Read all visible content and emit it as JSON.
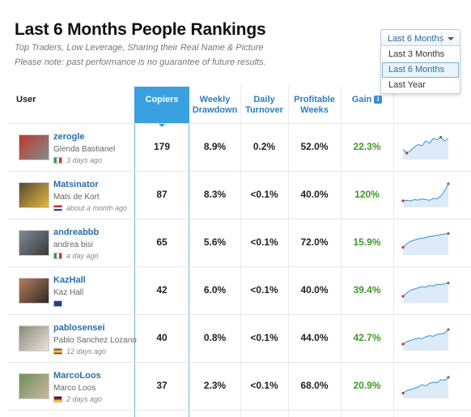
{
  "header": {
    "title": "Last 6 Months People Rankings",
    "subtitle": "Top Traders, Low Leverage, Sharing their Real Name & Picture",
    "note": "Please note: past performance is no guarantee of future results."
  },
  "period_dropdown": {
    "selected": "Last 6 Months",
    "options": [
      "Last 3 Months",
      "Last 6 Months",
      "Last Year"
    ]
  },
  "table": {
    "columns": {
      "user": "User",
      "copiers": "Copiers",
      "weekly_drawdown": [
        "Weekly",
        "Drawdown"
      ],
      "daily_turnover": [
        "Daily",
        "Turnover"
      ],
      "profitable_weeks": [
        "Profitable",
        "Weeks"
      ],
      "gain": "Gain"
    },
    "rows": [
      {
        "username": "zerogle",
        "real_name": "Glenda Bastianel",
        "flag": "italy-flag",
        "last_seen": "3 days ago",
        "copiers": "179",
        "weekly_drawdown": "8.9%",
        "daily_turnover": "0.2%",
        "profitable_weeks": "52.0%",
        "gain": "22.3%",
        "spark": [
          0.35,
          0.2,
          0.3,
          0.45,
          0.55,
          0.5,
          0.7,
          0.6,
          0.8,
          0.75,
          0.85,
          0.7,
          0.8
        ]
      },
      {
        "username": "Matsinator",
        "real_name": "Mats de Kort",
        "flag": "netherlands-flag",
        "last_seen": "about a month ago",
        "copiers": "87",
        "weekly_drawdown": "8.3%",
        "daily_turnover": "<0.1%",
        "profitable_weeks": "40.0%",
        "gain": "120%",
        "spark": [
          0.2,
          0.22,
          0.2,
          0.25,
          0.23,
          0.28,
          0.25,
          0.22,
          0.3,
          0.28,
          0.4,
          0.6,
          0.9
        ]
      },
      {
        "username": "andreabbb",
        "real_name": "andrea bisi",
        "flag": "italy-flag",
        "last_seen": "a day ago",
        "copiers": "65",
        "weekly_drawdown": "5.6%",
        "daily_turnover": "<0.1%",
        "profitable_weeks": "72.0%",
        "gain": "15.9%",
        "spark": [
          0.25,
          0.4,
          0.5,
          0.55,
          0.6,
          0.62,
          0.65,
          0.7,
          0.72,
          0.75,
          0.78,
          0.8,
          0.82
        ]
      },
      {
        "username": "KazHall",
        "real_name": "Kaz Hall",
        "flag": "australia-flag",
        "last_seen": "",
        "copiers": "42",
        "weekly_drawdown": "6.0%",
        "daily_turnover": "<0.1%",
        "profitable_weeks": "40.0%",
        "gain": "39.4%",
        "spark": [
          0.2,
          0.35,
          0.45,
          0.5,
          0.55,
          0.6,
          0.58,
          0.65,
          0.62,
          0.7,
          0.68,
          0.72,
          0.75
        ]
      },
      {
        "username": "pablosensei",
        "real_name": "Pablo Sanchez Lozano",
        "flag": "spain-flag",
        "last_seen": "12 days ago",
        "copiers": "40",
        "weekly_drawdown": "0.8%",
        "daily_turnover": "<0.1%",
        "profitable_weeks": "44.0%",
        "gain": "42.7%",
        "spark": [
          0.2,
          0.3,
          0.35,
          0.4,
          0.45,
          0.42,
          0.5,
          0.55,
          0.52,
          0.6,
          0.62,
          0.65,
          0.8
        ]
      },
      {
        "username": "MarcoLoos",
        "real_name": "Marco Loos",
        "flag": "germany-flag",
        "last_seen": "2 days ago",
        "copiers": "37",
        "weekly_drawdown": "2.3%",
        "daily_turnover": "<0.1%",
        "profitable_weeks": "68.0%",
        "gain": "20.9%",
        "spark": [
          0.15,
          0.25,
          0.3,
          0.35,
          0.4,
          0.5,
          0.45,
          0.55,
          0.6,
          0.58,
          0.7,
          0.68,
          0.8
        ]
      }
    ]
  },
  "colors": {
    "accent": "#3aa0df",
    "link": "#2a6eaa",
    "gain": "#3c9a25"
  }
}
